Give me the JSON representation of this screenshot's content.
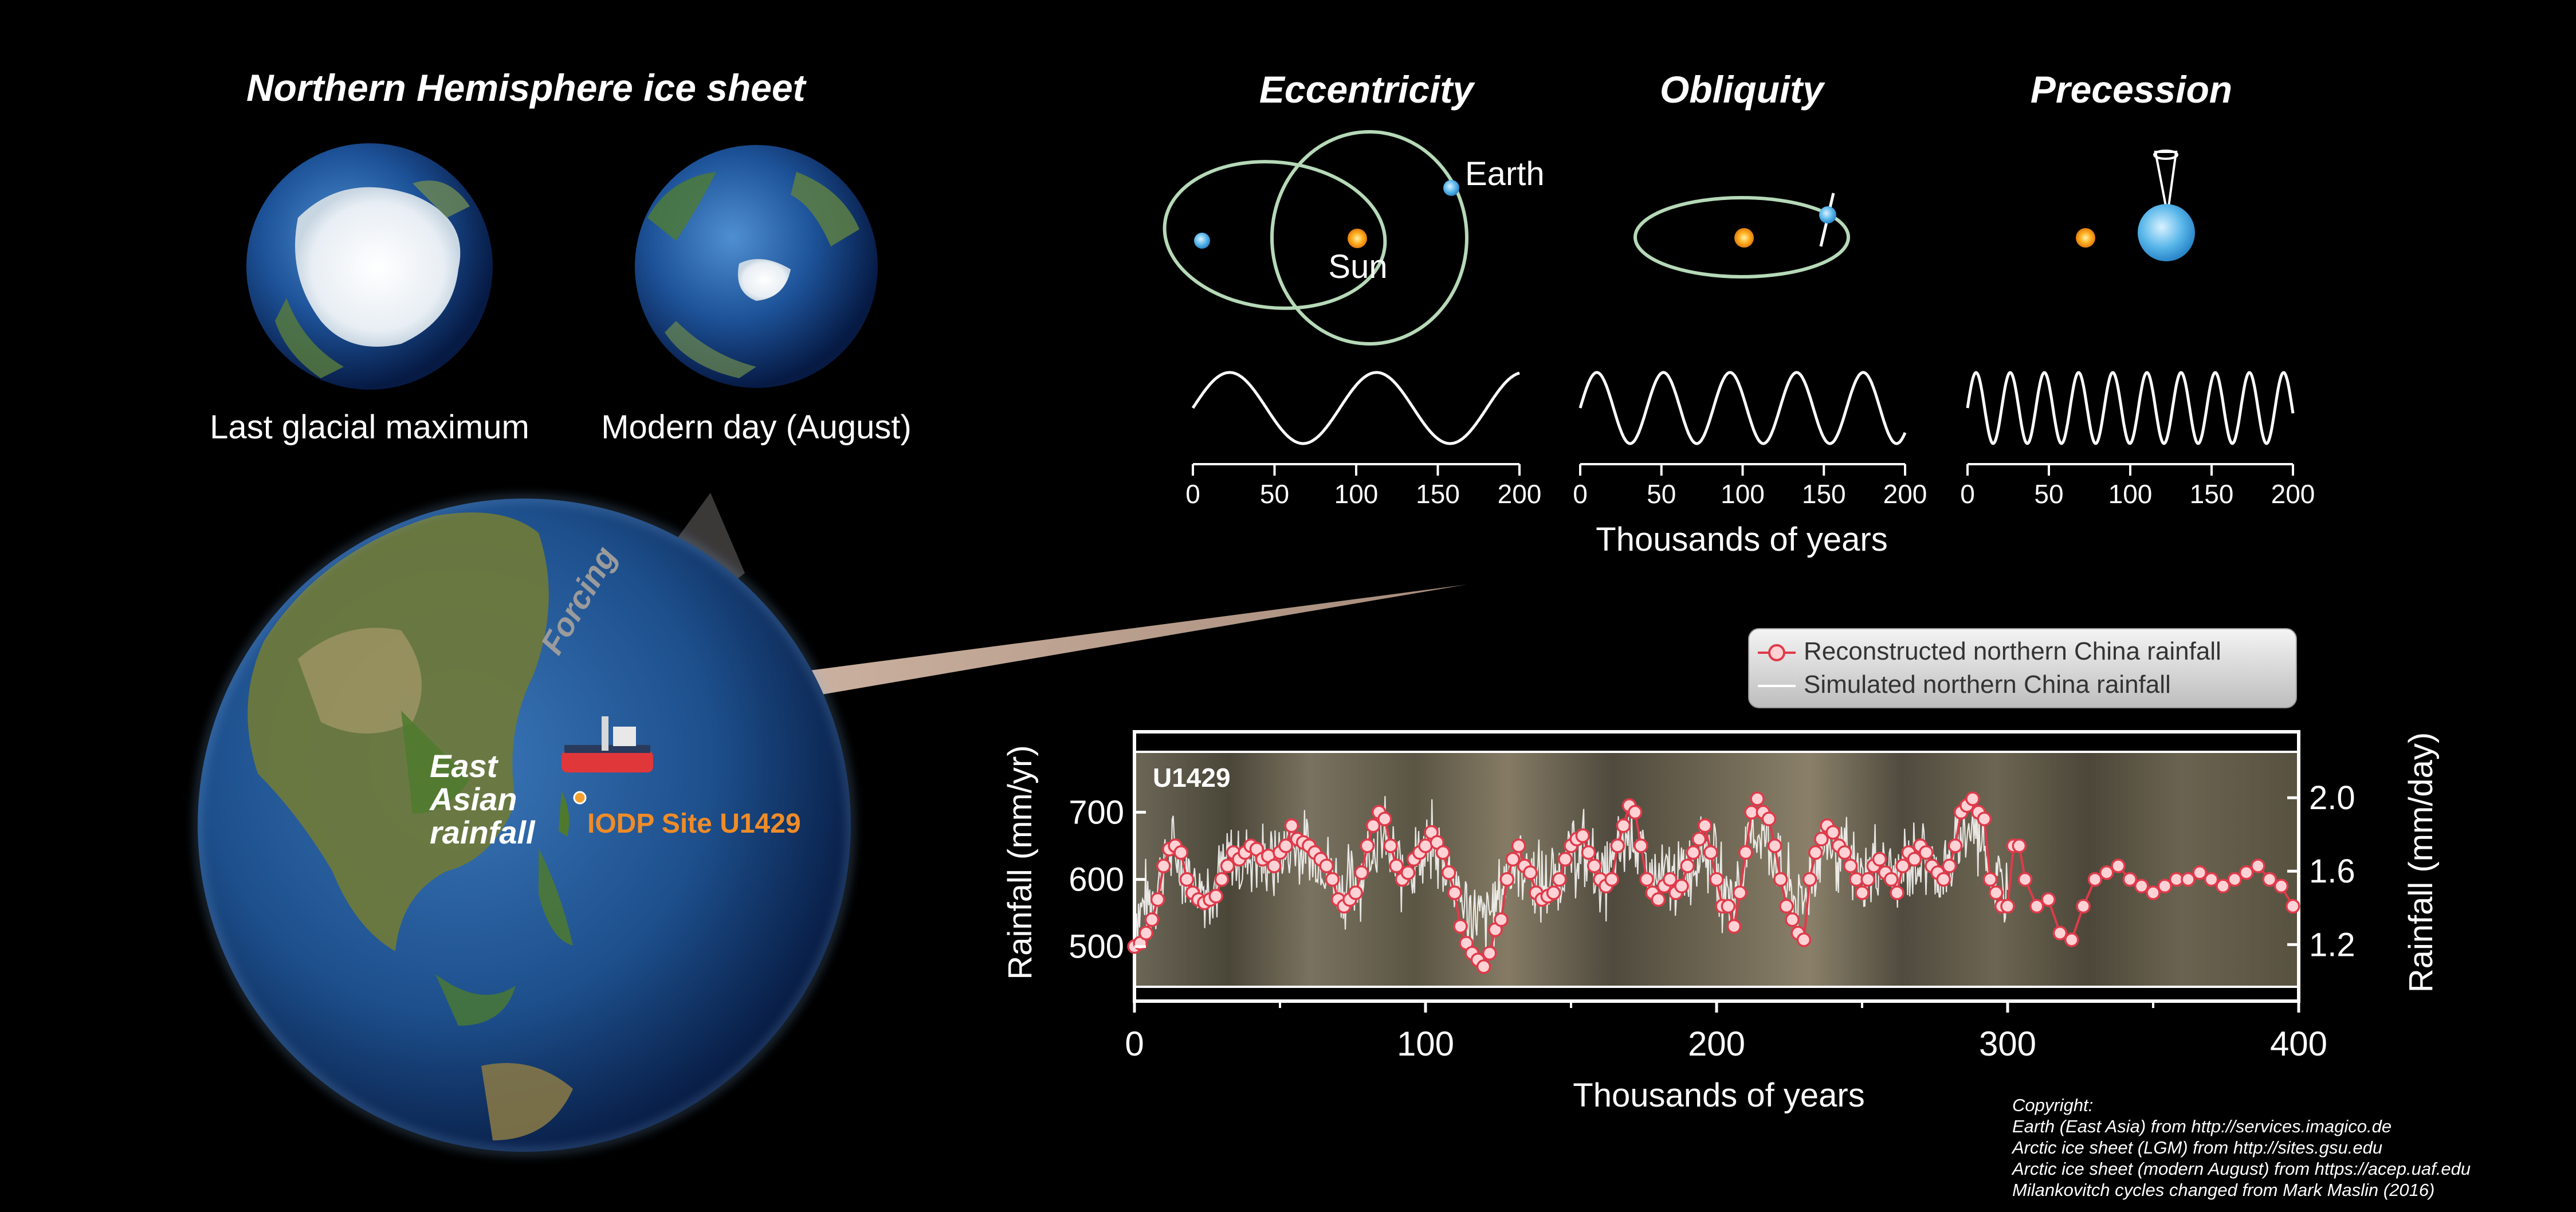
{
  "ice_sheet": {
    "title": "Northern Hemisphere ice sheet",
    "left_label": "Last glacial maximum",
    "right_label": "Modern day (August)"
  },
  "orbital": {
    "eccentricity": "Eccentricity",
    "obliquity": "Obliquity",
    "precession": "Precession",
    "earth_label": "Earth",
    "sun_label": "Sun",
    "xlabel": "Thousands of years",
    "tick_labels": [
      "0",
      "50",
      "100",
      "150",
      "200"
    ]
  },
  "map": {
    "forcing": "Forcing",
    "rainfall_line1": "East",
    "rainfall_line2": "Asian",
    "rainfall_line3": "rainfall",
    "site_label": "IODP Site U1429",
    "site_color": "#f08c28"
  },
  "legend": {
    "reconstructed": "Reconstructed northern China rainfall",
    "simulated": "Simulated northern China rainfall"
  },
  "copyright": [
    "Copyright:",
    "Earth (East Asia) from http://services.imagico.de",
    "Arctic ice sheet (LGM) from http://sites.gsu.edu",
    "Arctic ice sheet (modern August) from https://acep.uaf.edu",
    "Milankovitch cycles changed from Mark Maslin (2016)"
  ],
  "chart_data": [
    {
      "type": "line",
      "title": "Eccentricity",
      "xlabel": "Thousands of years",
      "xlim": [
        0,
        200
      ],
      "xticks": [
        0,
        50,
        100,
        150,
        200
      ],
      "period": 90,
      "color": "#ffffff"
    },
    {
      "type": "line",
      "title": "Obliquity",
      "xlabel": "Thousands of years",
      "xlim": [
        0,
        200
      ],
      "xticks": [
        0,
        50,
        100,
        150,
        200
      ],
      "period": 41,
      "color": "#ffffff"
    },
    {
      "type": "line",
      "title": "Precession",
      "xlabel": "Thousands of years",
      "xlim": [
        0,
        200
      ],
      "xticks": [
        0,
        50,
        100,
        150,
        200
      ],
      "period": 21,
      "color": "#ffffff"
    },
    {
      "type": "line",
      "inset_label": "U1429",
      "xlabel": "Thousands of years",
      "ylabel": "Rainfall (mm/yr)",
      "y2label": "Rainfall (mm/day)",
      "xlim": [
        0,
        400
      ],
      "ylim": [
        440,
        790
      ],
      "y2lim": [
        0.97,
        2.25
      ],
      "xticks": [
        0,
        100,
        200,
        300,
        400
      ],
      "yticks": [
        500,
        600,
        700
      ],
      "y2ticks": [
        1.2,
        1.6,
        2.0
      ],
      "y2tick_labels": [
        "1.2",
        "1.6",
        "2.0"
      ],
      "legend_position": "top-right",
      "series": [
        {
          "name": "Reconstructed northern China rainfall",
          "color": "#e03a4a",
          "x": [
            0,
            2,
            4,
            6,
            8,
            10,
            12,
            14,
            16,
            18,
            20,
            22,
            24,
            26,
            28,
            30,
            32,
            34,
            36,
            38,
            40,
            42,
            44,
            46,
            48,
            50,
            52,
            54,
            56,
            58,
            60,
            62,
            64,
            66,
            68,
            70,
            72,
            74,
            76,
            78,
            80,
            82,
            84,
            86,
            88,
            90,
            92,
            94,
            96,
            98,
            100,
            102,
            104,
            106,
            108,
            110,
            112,
            114,
            116,
            118,
            120,
            122,
            124,
            126,
            128,
            130,
            132,
            134,
            136,
            138,
            140,
            142,
            144,
            146,
            148,
            150,
            152,
            154,
            156,
            158,
            160,
            162,
            164,
            166,
            168,
            170,
            172,
            174,
            176,
            178,
            180,
            182,
            184,
            186,
            188,
            190,
            192,
            194,
            196,
            198,
            200,
            202,
            204,
            206,
            208,
            210,
            212,
            214,
            216,
            218,
            220,
            222,
            224,
            226,
            228,
            230,
            232,
            234,
            236,
            238,
            240,
            242,
            244,
            246,
            248,
            250,
            252,
            254,
            256,
            258,
            260,
            262,
            264,
            266,
            268,
            270,
            272,
            274,
            276,
            278,
            280,
            282,
            284,
            286,
            288,
            290,
            292,
            294,
            296,
            298,
            300,
            302,
            304,
            306,
            310,
            314,
            318,
            322,
            326,
            330,
            334,
            338,
            342,
            346,
            350,
            354,
            358,
            362,
            366,
            370,
            374,
            378,
            382,
            386,
            390,
            394,
            398
          ],
          "y": [
            500,
            505,
            520,
            540,
            570,
            620,
            645,
            650,
            640,
            600,
            580,
            570,
            565,
            570,
            575,
            600,
            620,
            640,
            630,
            640,
            650,
            645,
            630,
            635,
            620,
            640,
            650,
            680,
            660,
            655,
            650,
            640,
            630,
            620,
            600,
            570,
            560,
            570,
            580,
            610,
            650,
            680,
            700,
            690,
            650,
            620,
            600,
            610,
            630,
            640,
            650,
            670,
            655,
            640,
            610,
            580,
            530,
            505,
            490,
            480,
            470,
            490,
            525,
            540,
            600,
            630,
            650,
            620,
            610,
            580,
            570,
            575,
            580,
            600,
            630,
            650,
            660,
            665,
            640,
            620,
            600,
            590,
            600,
            650,
            680,
            710,
            700,
            650,
            600,
            580,
            570,
            590,
            600,
            580,
            590,
            620,
            640,
            660,
            680,
            640,
            600,
            560,
            560,
            530,
            580,
            640,
            700,
            720,
            700,
            690,
            650,
            600,
            560,
            540,
            520,
            510,
            600,
            640,
            660,
            680,
            670,
            650,
            640,
            620,
            600,
            580,
            600,
            620,
            630,
            610,
            600,
            580,
            620,
            640,
            630,
            650,
            640,
            620,
            610,
            600,
            620,
            650,
            700,
            710,
            720,
            700,
            690,
            600,
            580,
            560,
            560,
            650,
            650,
            600,
            560,
            570,
            520,
            510,
            560,
            600,
            610,
            620,
            600,
            590,
            580,
            590,
            600,
            600,
            610,
            600,
            590,
            600,
            610,
            620,
            600,
            590,
            560
          ]
        },
        {
          "name": "Simulated northern China rainfall",
          "color": "#ffffff",
          "x_range": [
            0,
            300
          ],
          "center_y": 620,
          "spread": 55
        }
      ]
    }
  ]
}
